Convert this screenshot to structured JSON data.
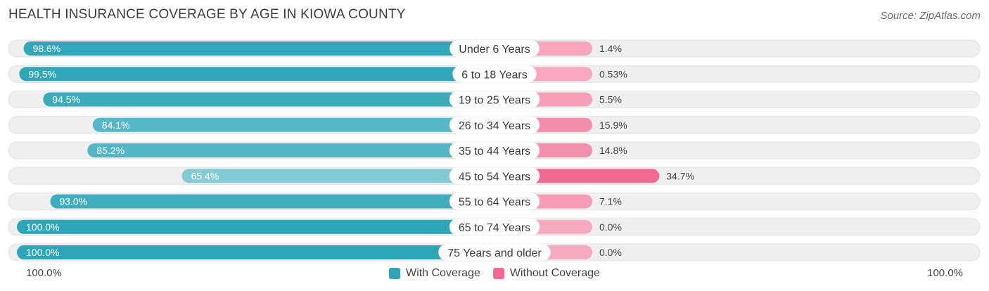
{
  "title": "HEALTH INSURANCE COVERAGE BY AGE IN KIOWA COUNTY",
  "source": "Source: ZipAtlas.com",
  "axis": {
    "left_label": "100.0%",
    "right_label": "100.0%"
  },
  "legend": {
    "with_label": "With Coverage",
    "without_label": "Without Coverage"
  },
  "colors": {
    "with_strong": "#2fa6b8",
    "with_light": "#8dcfd9",
    "without_strong": "#f06a93",
    "without_light": "#f7a9c0",
    "row_bg": "#efefef"
  },
  "chart_data": {
    "type": "bar",
    "orientation": "diverging-horizontal",
    "title": "HEALTH INSURANCE COVERAGE BY AGE IN KIOWA COUNTY",
    "categories": [
      "Under 6 Years",
      "6 to 18 Years",
      "19 to 25 Years",
      "26 to 34 Years",
      "35 to 44 Years",
      "45 to 54 Years",
      "55 to 64 Years",
      "65 to 74 Years",
      "75 Years and older"
    ],
    "series": [
      {
        "name": "With Coverage",
        "values": [
          98.6,
          99.5,
          94.5,
          84.1,
          85.2,
          65.4,
          93.0,
          100.0,
          100.0
        ],
        "labels": [
          "98.6%",
          "99.5%",
          "94.5%",
          "84.1%",
          "85.2%",
          "65.4%",
          "93.0%",
          "100.0%",
          "100.0%"
        ]
      },
      {
        "name": "Without Coverage",
        "values": [
          1.4,
          0.53,
          5.5,
          15.9,
          14.8,
          34.7,
          7.1,
          0.0,
          0.0
        ],
        "labels": [
          "1.4%",
          "0.53%",
          "5.5%",
          "15.9%",
          "14.8%",
          "34.7%",
          "7.1%",
          "0.0%",
          "0.0%"
        ]
      }
    ],
    "xlim": [
      -100,
      100
    ]
  }
}
